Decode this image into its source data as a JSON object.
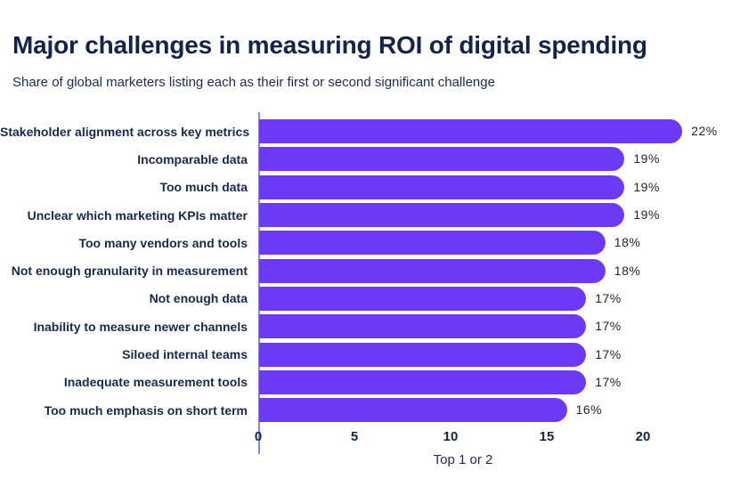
{
  "header": {
    "title": "Major challenges in measuring ROI of digital spending",
    "subtitle": "Share of global marketers listing each as their first or second significant challenge"
  },
  "chart_data": {
    "type": "bar",
    "orientation": "horizontal",
    "title": "Major challenges in measuring ROI of digital spending",
    "subtitle": "Share of global marketers listing each as their first or second significant challenge",
    "categories": [
      "Stakeholder alignment across key metrics",
      "Incomparable data",
      "Too much data",
      "Unclear which marketing KPIs matter",
      "Too many vendors and tools",
      "Not enough granularity in measurement",
      "Not enough data",
      "Inability to measure newer channels",
      "Siloed internal teams",
      "Inadequate measurement tools",
      "Too much emphasis on short term"
    ],
    "values": [
      22,
      19,
      19,
      19,
      18,
      18,
      17,
      17,
      17,
      17,
      16
    ],
    "value_suffix": "%",
    "xlabel": "Top 1 or 2",
    "ylabel": "",
    "xticks": [
      0,
      5,
      10,
      15,
      20
    ],
    "xlim": [
      0,
      25
    ],
    "grid": false,
    "legend_position": "none",
    "colors": {
      "bar": "#6c39f5",
      "category_label": "#17294d",
      "value_label": "#23232e",
      "tick_label": "#14234a",
      "axis_line": "#8b80f2",
      "title": "#14234a",
      "subtitle": "#1d2b52"
    }
  }
}
